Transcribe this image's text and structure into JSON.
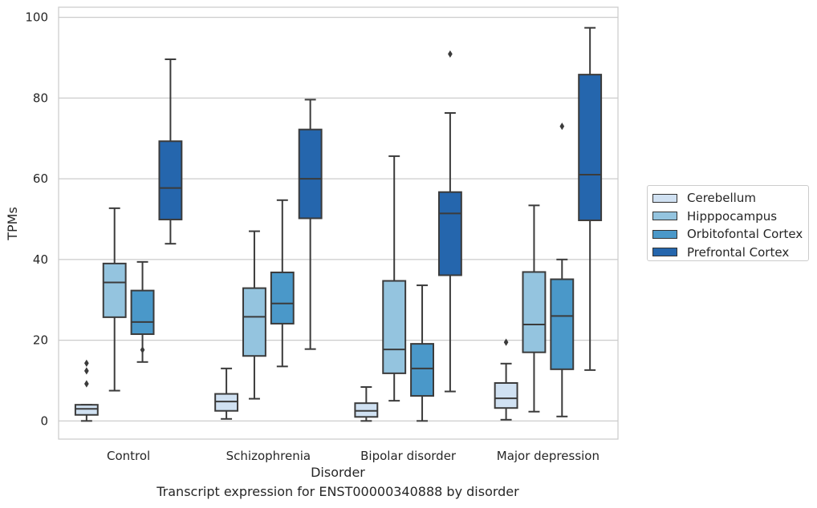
{
  "chart_data": {
    "type": "boxplot",
    "caption": "Transcript expression for ENST00000340888 by disorder",
    "xlabel": "Disorder",
    "ylabel": "TPMs",
    "ylim": [
      -4.5,
      102.5
    ],
    "yticks": [
      "0",
      "20",
      "40",
      "60",
      "80",
      "100"
    ],
    "grid": true,
    "legend_position": "right",
    "categories": [
      "Control",
      "Schizophrenia",
      "Bipolar disorder",
      "Major depression"
    ],
    "series": [
      {
        "name": "Cerebellum",
        "color": "#d0e1f2",
        "boxes": [
          {
            "whislo": 0,
            "q1": 1.5,
            "med": 3.0,
            "q3": 4.0,
            "whishi": 4.0,
            "fliers": [
              9.2,
              12.4,
              14.3
            ]
          },
          {
            "whislo": 0.5,
            "q1": 2.5,
            "med": 4.8,
            "q3": 6.7,
            "whishi": 13.0,
            "fliers": []
          },
          {
            "whislo": 0,
            "q1": 1.0,
            "med": 2.5,
            "q3": 4.4,
            "whishi": 8.4,
            "fliers": []
          },
          {
            "whislo": 0.3,
            "q1": 3.2,
            "med": 5.6,
            "q3": 9.4,
            "whishi": 14.2,
            "fliers": [
              19.5
            ]
          }
        ]
      },
      {
        "name": "Hipppocampus",
        "color": "#94c4df",
        "boxes": [
          {
            "whislo": 7.5,
            "q1": 25.7,
            "med": 34.3,
            "q3": 39.0,
            "whishi": 52.7,
            "fliers": []
          },
          {
            "whislo": 5.5,
            "q1": 16.1,
            "med": 25.8,
            "q3": 32.9,
            "whishi": 47.0,
            "fliers": []
          },
          {
            "whislo": 5.0,
            "q1": 11.8,
            "med": 17.7,
            "q3": 34.7,
            "whishi": 65.6,
            "fliers": []
          },
          {
            "whislo": 2.3,
            "q1": 17.0,
            "med": 23.9,
            "q3": 36.9,
            "whishi": 53.4,
            "fliers": []
          }
        ]
      },
      {
        "name": "Orbitofontal Cortex",
        "color": "#4a98c9",
        "boxes": [
          {
            "whislo": 14.6,
            "q1": 21.5,
            "med": 24.5,
            "q3": 32.3,
            "whishi": 39.4,
            "fliers": [
              17.6
            ]
          },
          {
            "whislo": 13.5,
            "q1": 24.1,
            "med": 29.1,
            "q3": 36.8,
            "whishi": 54.7,
            "fliers": []
          },
          {
            "whislo": 0,
            "q1": 6.2,
            "med": 13.0,
            "q3": 19.1,
            "whishi": 33.6,
            "fliers": []
          },
          {
            "whislo": 1.1,
            "q1": 12.8,
            "med": 26.0,
            "q3": 35.1,
            "whishi": 40.0,
            "fliers": [
              73.0
            ]
          }
        ]
      },
      {
        "name": "Prefrontal Cortex",
        "color": "#2566ad",
        "boxes": [
          {
            "whislo": 43.9,
            "q1": 49.9,
            "med": 57.7,
            "q3": 69.3,
            "whishi": 89.6,
            "fliers": []
          },
          {
            "whislo": 17.8,
            "q1": 50.2,
            "med": 60.0,
            "q3": 72.2,
            "whishi": 79.6,
            "fliers": []
          },
          {
            "whislo": 7.3,
            "q1": 36.1,
            "med": 51.4,
            "q3": 56.7,
            "whishi": 76.3,
            "fliers": [
              90.9
            ]
          },
          {
            "whislo": 12.6,
            "q1": 49.7,
            "med": 61.0,
            "q3": 85.8,
            "whishi": 97.4,
            "fliers": []
          }
        ]
      }
    ]
  }
}
